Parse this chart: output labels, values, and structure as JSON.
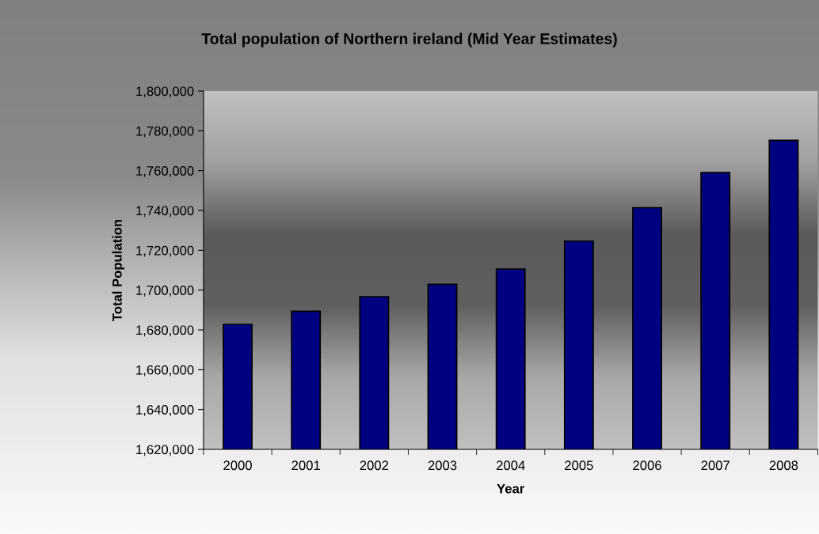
{
  "chart_data": {
    "type": "bar",
    "title": "Total population of Northern ireland (Mid Year Estimates)",
    "xlabel": "Year",
    "ylabel": "Total Population",
    "categories": [
      "2000",
      "2001",
      "2002",
      "2003",
      "2004",
      "2005",
      "2006",
      "2007",
      "2008"
    ],
    "values": [
      1682800,
      1689400,
      1696700,
      1702900,
      1710600,
      1724600,
      1741400,
      1759000,
      1775200
    ],
    "color": "#000080",
    "ylim": [
      1620000,
      1800000
    ],
    "yticks": [
      {
        "value": 1620000,
        "label": "1,620,000"
      },
      {
        "value": 1640000,
        "label": "1,640,000"
      },
      {
        "value": 1660000,
        "label": "1,660,000"
      },
      {
        "value": 1680000,
        "label": "1,680,000"
      },
      {
        "value": 1700000,
        "label": "1,700,000"
      },
      {
        "value": 1720000,
        "label": "1,720,000"
      },
      {
        "value": 1740000,
        "label": "1,740,000"
      },
      {
        "value": 1760000,
        "label": "1,760,000"
      },
      {
        "value": 1780000,
        "label": "1,780,000"
      },
      {
        "value": 1800000,
        "label": "1,800,000"
      }
    ],
    "grid": false,
    "legend": false
  }
}
